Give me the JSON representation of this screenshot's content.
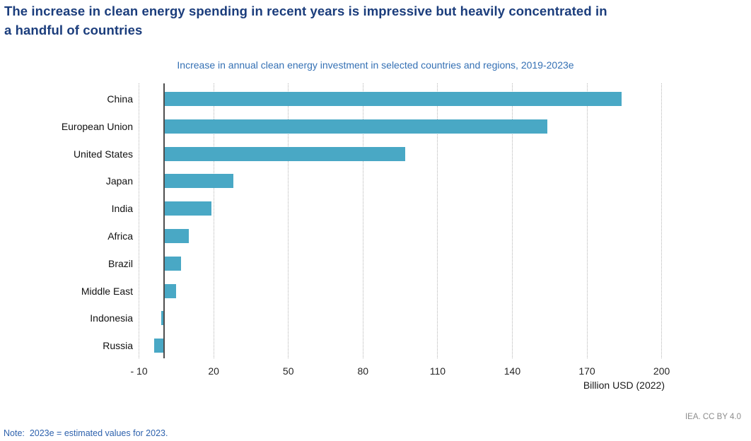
{
  "page": {
    "headline_line1": "The increase in clean energy spending in recent years is impressive but heavily concentrated in",
    "headline_line2": "a handful of countries",
    "note": "Note:  2023e = estimated values for 2023.",
    "attribution": "IEA. CC BY 4.0"
  },
  "colors": {
    "headline": "#1b3d7c",
    "subtitle": "#3470b4",
    "bar": "#49a8c5",
    "zero_axis": "#4d4d4d",
    "gridline": "#b5b5b5",
    "tick_text": "#262626",
    "note": "#2e62ad",
    "attribution": "#8c8c8c"
  },
  "chart_data": {
    "type": "bar",
    "orientation": "horizontal",
    "title": "Increase in annual clean energy investment in selected countries and regions, 2019-2023e",
    "categories": [
      "China",
      "European Union",
      "United States",
      "Japan",
      "India",
      "Africa",
      "Brazil",
      "Middle East",
      "Indonesia",
      "Russia"
    ],
    "values": [
      184,
      154,
      97,
      28,
      19,
      10,
      7,
      5,
      -1,
      -4
    ],
    "xlabel": "Billion USD (2022)",
    "xlim": [
      -13,
      220
    ],
    "xticks": [
      -10,
      20,
      50,
      80,
      110,
      140,
      170,
      200
    ],
    "xtick_labels": [
      "- 10",
      "20",
      "50",
      "80",
      "110",
      "140",
      "170",
      "200"
    ],
    "grid": "vertical-dotted",
    "legend": "none",
    "bar_color": "#49a8c5"
  }
}
